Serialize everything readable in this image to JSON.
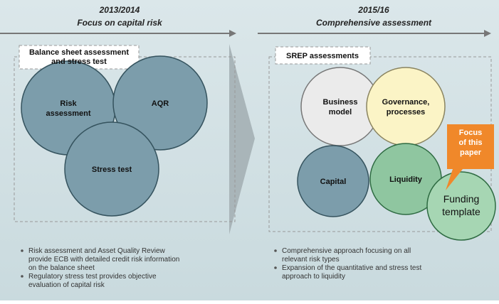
{
  "left": {
    "period": "2013/2014",
    "heading": "Focus on capital risk",
    "box_title": [
      "Balance sheet assessment",
      "and stress test"
    ],
    "circles": [
      [
        "Risk",
        "assessment"
      ],
      [
        "AQR"
      ],
      [
        "Stress test"
      ]
    ],
    "bullets": [
      [
        "Risk assessment and  Asset Quality Review",
        "provide ECB with detailed credit risk information",
        "on the balance sheet"
      ],
      [
        "Regulatory stress test provides objective",
        "evaluation of capital risk"
      ]
    ]
  },
  "right": {
    "period": "2015/16",
    "heading": "Comprehensive assessment",
    "box_title": [
      "SREP assessments"
    ],
    "circles": [
      [
        "Business",
        "model"
      ],
      [
        "Governance,",
        "processes"
      ],
      [
        "Capital"
      ],
      [
        "Liquidity"
      ],
      [
        "Funding",
        "template"
      ]
    ],
    "callout": [
      "Focus",
      "of this",
      "paper"
    ],
    "bullets": [
      [
        "Comprehensive approach focusing on all",
        "relevant risk types"
      ],
      [
        "Expansion of the quantitative and stress test",
        "approach to liquidity"
      ]
    ]
  }
}
